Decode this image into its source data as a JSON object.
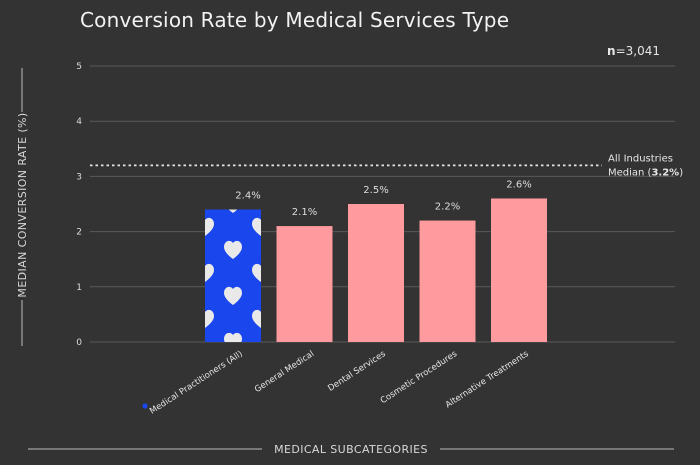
{
  "chart_data": {
    "type": "bar",
    "title": "Conversion Rate by Medical Services Type",
    "n_label": "n",
    "n_value": "=3,041",
    "categories": [
      "Medical Practitioners (All)",
      "General Medical",
      "Dental Services",
      "Cosmetic Procedures",
      "Alternative Treatments"
    ],
    "values": [
      2.4,
      2.1,
      2.5,
      2.2,
      2.6
    ],
    "data_labels": [
      "2.4%",
      "2.1%",
      "2.5%",
      "2.2%",
      "2.6%"
    ],
    "highlighted_index": 0,
    "ylim": [
      0,
      5
    ],
    "yticks": [
      "0",
      "1",
      "2",
      "3",
      "4",
      "5"
    ],
    "ylabel": "MEDIAN CONVERSION RATE (%)",
    "xlabel": "MEDICAL SUBCATEGORIES",
    "grid": true,
    "reference_line": {
      "value": 3.2,
      "label_line1": "All Industries",
      "label_line2_prefix": "Median (",
      "label_line2_value": "3.2%",
      "label_line2_suffix": ")"
    },
    "colors": {
      "bar": "#ff9a9e",
      "highlight": "#1a46ee",
      "heart": "#e9e9e9",
      "grid": "#5a5a5a",
      "background": "#333333"
    }
  }
}
